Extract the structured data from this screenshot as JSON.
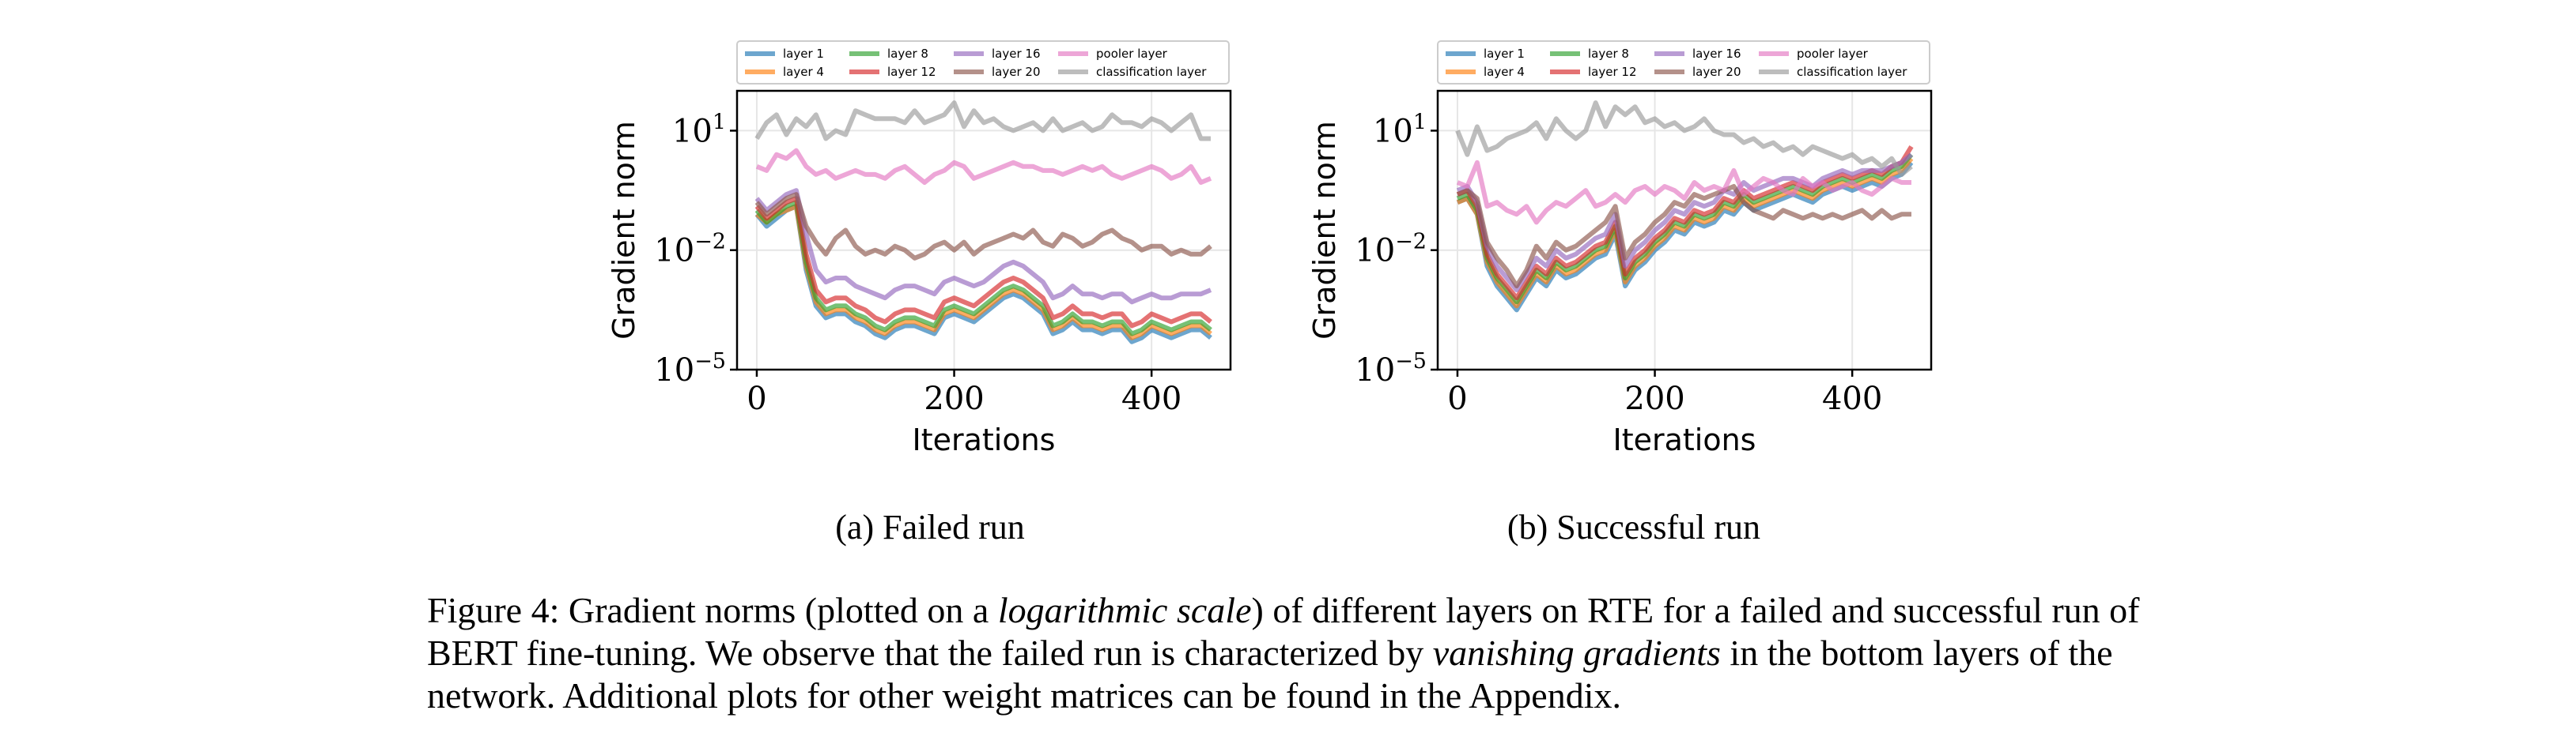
{
  "chart_data": [
    {
      "type": "line",
      "subcaption": "(a) Failed run",
      "xlabel": "Iterations",
      "ylabel": "Gradient norm",
      "yscale": "log",
      "xticks": [
        0,
        200,
        400
      ],
      "yticks": [
        {
          "value": -5,
          "label": "10",
          "exp": "−5"
        },
        {
          "value": -2,
          "label": "10",
          "exp": "−2"
        },
        {
          "value": 1,
          "label": "10",
          "exp": "1"
        }
      ],
      "xlim": [
        -20,
        480
      ],
      "ylim_log10": [
        -5,
        2
      ],
      "grid": true,
      "legend_position": "top",
      "x": [
        0,
        10,
        20,
        30,
        40,
        50,
        60,
        70,
        80,
        90,
        100,
        110,
        120,
        130,
        140,
        150,
        160,
        170,
        180,
        190,
        200,
        210,
        220,
        230,
        240,
        250,
        260,
        270,
        280,
        290,
        300,
        310,
        320,
        330,
        340,
        350,
        360,
        370,
        380,
        390,
        400,
        410,
        420,
        430,
        440,
        450,
        460
      ],
      "series": [
        {
          "name": "layer 1",
          "color": "#1f77b4",
          "log10_values": [
            -1.1,
            -1.4,
            -1.2,
            -1.0,
            -0.9,
            -2.5,
            -3.4,
            -3.7,
            -3.6,
            -3.6,
            -3.8,
            -3.9,
            -4.1,
            -4.2,
            -4.0,
            -3.9,
            -3.9,
            -4.0,
            -4.1,
            -3.7,
            -3.6,
            -3.7,
            -3.8,
            -3.6,
            -3.4,
            -3.2,
            -3.1,
            -3.2,
            -3.4,
            -3.6,
            -4.1,
            -4.0,
            -3.8,
            -4.0,
            -4.0,
            -4.1,
            -4.0,
            -4.0,
            -4.3,
            -4.2,
            -4.0,
            -4.1,
            -4.2,
            -4.1,
            -4.0,
            -4.0,
            -4.2
          ]
        },
        {
          "name": "layer 4",
          "color": "#ff7f0e",
          "log10_values": [
            -1.1,
            -1.3,
            -1.1,
            -1.0,
            -0.9,
            -2.4,
            -3.3,
            -3.6,
            -3.5,
            -3.5,
            -3.7,
            -3.8,
            -4.0,
            -4.1,
            -3.9,
            -3.8,
            -3.8,
            -3.9,
            -4.0,
            -3.6,
            -3.5,
            -3.6,
            -3.7,
            -3.5,
            -3.3,
            -3.1,
            -3.0,
            -3.1,
            -3.3,
            -3.5,
            -4.0,
            -3.9,
            -3.7,
            -3.9,
            -3.9,
            -4.0,
            -3.9,
            -3.9,
            -4.2,
            -4.1,
            -3.9,
            -4.0,
            -4.1,
            -4.0,
            -3.9,
            -3.9,
            -4.1
          ]
        },
        {
          "name": "layer 8",
          "color": "#2ca02c",
          "log10_values": [
            -1.0,
            -1.3,
            -1.1,
            -0.9,
            -0.8,
            -2.3,
            -3.2,
            -3.5,
            -3.4,
            -3.4,
            -3.6,
            -3.7,
            -3.9,
            -4.0,
            -3.8,
            -3.7,
            -3.7,
            -3.8,
            -3.9,
            -3.5,
            -3.4,
            -3.5,
            -3.6,
            -3.4,
            -3.2,
            -3.0,
            -2.9,
            -3.0,
            -3.2,
            -3.4,
            -3.9,
            -3.8,
            -3.6,
            -3.8,
            -3.8,
            -3.9,
            -3.8,
            -3.8,
            -4.1,
            -4.0,
            -3.8,
            -3.9,
            -4.0,
            -3.9,
            -3.8,
            -3.8,
            -4.0
          ]
        },
        {
          "name": "layer 12",
          "color": "#d62728",
          "log10_values": [
            -0.9,
            -1.2,
            -1.0,
            -0.8,
            -0.7,
            -2.1,
            -3.0,
            -3.3,
            -3.2,
            -3.2,
            -3.4,
            -3.5,
            -3.7,
            -3.8,
            -3.6,
            -3.5,
            -3.5,
            -3.6,
            -3.7,
            -3.3,
            -3.2,
            -3.3,
            -3.4,
            -3.2,
            -3.0,
            -2.8,
            -2.7,
            -2.8,
            -3.0,
            -3.2,
            -3.7,
            -3.6,
            -3.4,
            -3.6,
            -3.6,
            -3.7,
            -3.6,
            -3.6,
            -3.9,
            -3.8,
            -3.6,
            -3.7,
            -3.8,
            -3.7,
            -3.6,
            -3.6,
            -3.8
          ]
        },
        {
          "name": "layer 16",
          "color": "#9467bd",
          "log10_values": [
            -0.7,
            -1.0,
            -0.8,
            -0.6,
            -0.5,
            -1.6,
            -2.5,
            -2.8,
            -2.7,
            -2.7,
            -2.9,
            -3.0,
            -3.1,
            -3.2,
            -3.0,
            -2.9,
            -2.9,
            -3.0,
            -3.1,
            -2.8,
            -2.7,
            -2.8,
            -2.9,
            -2.8,
            -2.6,
            -2.4,
            -2.3,
            -2.4,
            -2.6,
            -2.8,
            -3.2,
            -3.1,
            -2.9,
            -3.1,
            -3.1,
            -3.2,
            -3.1,
            -3.1,
            -3.3,
            -3.2,
            -3.1,
            -3.2,
            -3.2,
            -3.1,
            -3.1,
            -3.1,
            -3.0
          ]
        },
        {
          "name": "layer 20",
          "color": "#8c564b",
          "log10_values": [
            -0.8,
            -1.1,
            -0.9,
            -0.7,
            -0.6,
            -1.4,
            -1.8,
            -2.1,
            -1.7,
            -1.5,
            -1.9,
            -2.1,
            -2.0,
            -2.1,
            -1.9,
            -2.0,
            -2.2,
            -2.1,
            -1.9,
            -1.8,
            -2.0,
            -1.8,
            -2.1,
            -1.9,
            -1.8,
            -1.7,
            -1.6,
            -1.7,
            -1.5,
            -1.8,
            -1.9,
            -1.6,
            -1.7,
            -1.9,
            -1.8,
            -1.6,
            -1.5,
            -1.7,
            -1.8,
            -2.0,
            -1.9,
            -1.9,
            -2.1,
            -2.0,
            -2.1,
            -2.1,
            -1.9
          ]
        },
        {
          "name": "pooler layer",
          "color": "#e377c2",
          "log10_values": [
            0.1,
            0.0,
            0.4,
            0.3,
            0.5,
            0.1,
            -0.1,
            0.0,
            -0.2,
            -0.1,
            0.0,
            -0.1,
            -0.1,
            -0.2,
            0.0,
            0.1,
            -0.1,
            -0.3,
            -0.1,
            0.0,
            0.2,
            0.1,
            -0.2,
            -0.1,
            0.0,
            0.1,
            0.2,
            0.1,
            0.1,
            0.0,
            0.0,
            -0.1,
            0.0,
            0.1,
            0.0,
            0.1,
            -0.1,
            -0.2,
            -0.1,
            0.0,
            0.1,
            0.0,
            -0.2,
            -0.1,
            0.1,
            -0.3,
            -0.2
          ]
        },
        {
          "name": "classification layer",
          "color": "#999999",
          "log10_values": [
            0.8,
            1.2,
            1.4,
            0.9,
            1.3,
            1.1,
            1.4,
            0.8,
            1.0,
            0.9,
            1.5,
            1.4,
            1.3,
            1.3,
            1.3,
            1.2,
            1.5,
            1.2,
            1.3,
            1.4,
            1.7,
            1.1,
            1.5,
            1.2,
            1.3,
            1.1,
            1.0,
            1.1,
            1.2,
            1.0,
            1.3,
            1.0,
            1.1,
            1.2,
            1.0,
            1.1,
            1.4,
            1.2,
            1.2,
            1.1,
            1.3,
            1.2,
            1.0,
            1.2,
            1.4,
            0.8,
            0.8
          ]
        }
      ]
    },
    {
      "type": "line",
      "subcaption": "(b) Successful run",
      "xlabel": "Iterations",
      "ylabel": "Gradient norm",
      "yscale": "log",
      "xticks": [
        0,
        200,
        400
      ],
      "yticks": [
        {
          "value": -5,
          "label": "10",
          "exp": "−5"
        },
        {
          "value": -2,
          "label": "10",
          "exp": "−2"
        },
        {
          "value": 1,
          "label": "10",
          "exp": "1"
        }
      ],
      "xlim": [
        -20,
        480
      ],
      "ylim_log10": [
        -5,
        2
      ],
      "grid": true,
      "legend_position": "top",
      "x": [
        0,
        10,
        20,
        30,
        40,
        50,
        60,
        70,
        80,
        90,
        100,
        110,
        120,
        130,
        140,
        150,
        160,
        170,
        180,
        190,
        200,
        210,
        220,
        230,
        240,
        250,
        260,
        270,
        280,
        290,
        300,
        310,
        320,
        330,
        340,
        350,
        360,
        370,
        380,
        390,
        400,
        410,
        420,
        430,
        440,
        450,
        460
      ],
      "series": [
        {
          "name": "layer 1",
          "color": "#1f77b4",
          "log10_values": [
            -0.8,
            -0.7,
            -1.1,
            -2.4,
            -2.9,
            -3.2,
            -3.5,
            -3.1,
            -2.7,
            -2.9,
            -2.5,
            -2.7,
            -2.6,
            -2.4,
            -2.2,
            -2.1,
            -1.6,
            -2.9,
            -2.5,
            -2.3,
            -2.0,
            -1.8,
            -1.5,
            -1.6,
            -1.3,
            -1.4,
            -1.3,
            -1.0,
            -1.1,
            -0.8,
            -1.0,
            -0.9,
            -0.8,
            -0.7,
            -0.6,
            -0.7,
            -0.8,
            -0.6,
            -0.5,
            -0.4,
            -0.5,
            -0.4,
            -0.3,
            -0.4,
            -0.2,
            -0.1,
            0.2
          ]
        },
        {
          "name": "layer 4",
          "color": "#ff7f0e",
          "log10_values": [
            -0.8,
            -0.7,
            -1.1,
            -2.3,
            -2.8,
            -3.1,
            -3.4,
            -3.0,
            -2.6,
            -2.8,
            -2.4,
            -2.6,
            -2.5,
            -2.3,
            -2.1,
            -2.0,
            -1.5,
            -2.8,
            -2.4,
            -2.2,
            -1.9,
            -1.7,
            -1.4,
            -1.5,
            -1.2,
            -1.3,
            -1.2,
            -0.9,
            -1.0,
            -0.7,
            -0.9,
            -0.8,
            -0.7,
            -0.6,
            -0.5,
            -0.6,
            -0.7,
            -0.5,
            -0.4,
            -0.3,
            -0.4,
            -0.3,
            -0.2,
            -0.3,
            -0.1,
            0.0,
            0.3
          ]
        },
        {
          "name": "layer 8",
          "color": "#2ca02c",
          "log10_values": [
            -0.7,
            -0.6,
            -1.0,
            -2.2,
            -2.7,
            -3.0,
            -3.3,
            -2.9,
            -2.5,
            -2.7,
            -2.3,
            -2.5,
            -2.4,
            -2.2,
            -2.0,
            -1.9,
            -1.4,
            -2.7,
            -2.3,
            -2.1,
            -1.8,
            -1.6,
            -1.3,
            -1.4,
            -1.1,
            -1.2,
            -1.1,
            -0.8,
            -0.9,
            -0.6,
            -0.8,
            -0.7,
            -0.6,
            -0.5,
            -0.4,
            -0.5,
            -0.6,
            -0.4,
            -0.3,
            -0.2,
            -0.3,
            -0.2,
            -0.1,
            -0.2,
            0.0,
            0.1,
            0.4
          ]
        },
        {
          "name": "layer 12",
          "color": "#d62728",
          "log10_values": [
            -0.6,
            -0.5,
            -0.9,
            -2.1,
            -2.6,
            -2.9,
            -3.2,
            -2.8,
            -2.4,
            -2.6,
            -2.2,
            -2.4,
            -2.3,
            -2.1,
            -1.9,
            -1.8,
            -1.3,
            -2.6,
            -2.2,
            -2.0,
            -1.7,
            -1.5,
            -1.2,
            -1.3,
            -1.0,
            -1.1,
            -1.0,
            -0.7,
            -0.8,
            -0.5,
            -0.7,
            -0.6,
            -0.5,
            -0.4,
            -0.3,
            -0.4,
            -0.5,
            -0.3,
            -0.2,
            -0.1,
            -0.2,
            -0.1,
            0.0,
            -0.1,
            0.1,
            0.2,
            0.6
          ]
        },
        {
          "name": "layer 16",
          "color": "#9467bd",
          "log10_values": [
            -0.5,
            -0.4,
            -0.8,
            -1.9,
            -2.4,
            -2.7,
            -3.0,
            -2.6,
            -2.2,
            -2.4,
            -2.0,
            -2.2,
            -2.1,
            -1.9,
            -1.7,
            -1.6,
            -1.1,
            -2.4,
            -2.0,
            -1.8,
            -1.5,
            -1.3,
            -1.0,
            -1.1,
            -0.8,
            -0.9,
            -0.8,
            -0.5,
            -0.6,
            -0.3,
            -0.5,
            -0.4,
            -0.3,
            -0.2,
            -0.2,
            -0.3,
            -0.4,
            -0.2,
            -0.1,
            0.0,
            -0.1,
            0.0,
            0.0,
            0.0,
            0.1,
            0.2,
            0.4
          ]
        },
        {
          "name": "layer 20",
          "color": "#8c564b",
          "log10_values": [
            -0.6,
            -0.5,
            -0.7,
            -1.8,
            -2.2,
            -2.5,
            -2.9,
            -2.5,
            -1.9,
            -2.2,
            -1.8,
            -2.0,
            -1.9,
            -1.7,
            -1.5,
            -1.3,
            -0.9,
            -2.2,
            -1.8,
            -1.6,
            -1.3,
            -1.1,
            -0.8,
            -0.9,
            -0.6,
            -0.7,
            -0.6,
            -0.5,
            -0.4,
            -0.8,
            -1.0,
            -1.1,
            -1.2,
            -1.0,
            -1.1,
            -1.2,
            -1.1,
            -1.2,
            -1.1,
            -1.2,
            -1.1,
            -1.0,
            -1.2,
            -1.0,
            -1.2,
            -1.1,
            -1.1
          ]
        },
        {
          "name": "pooler layer",
          "color": "#e377c2",
          "log10_values": [
            -0.3,
            -0.4,
            0.2,
            -0.9,
            -0.8,
            -1.0,
            -1.1,
            -0.9,
            -1.3,
            -1.0,
            -0.8,
            -0.9,
            -0.7,
            -0.5,
            -0.9,
            -0.8,
            -0.6,
            -0.8,
            -0.5,
            -0.4,
            -0.6,
            -0.4,
            -0.5,
            -0.7,
            -0.3,
            -0.5,
            -0.4,
            -0.5,
            0.0,
            -0.6,
            -0.4,
            -0.2,
            -0.3,
            -0.5,
            -0.6,
            -0.2,
            -0.4,
            -0.3,
            -0.5,
            -0.4,
            -0.3,
            -0.5,
            -0.6,
            -0.4,
            -0.2,
            -0.3,
            -0.3
          ]
        },
        {
          "name": "classification layer",
          "color": "#999999",
          "log10_values": [
            1.0,
            0.4,
            1.1,
            0.5,
            0.6,
            0.8,
            0.9,
            1.0,
            1.2,
            0.8,
            1.3,
            1.0,
            0.8,
            1.0,
            1.7,
            1.1,
            1.6,
            1.4,
            1.6,
            1.2,
            1.3,
            1.1,
            1.2,
            1.0,
            1.1,
            1.3,
            1.0,
            0.9,
            0.9,
            0.7,
            0.8,
            0.6,
            0.7,
            0.5,
            0.6,
            0.4,
            0.6,
            0.5,
            0.4,
            0.3,
            0.4,
            0.2,
            0.3,
            0.1,
            0.3,
            -0.1,
            0.1
          ]
        }
      ]
    }
  ],
  "caption": {
    "p1": "Figure 4: Gradient norms (plotted on a ",
    "em1": "logarithmic scale",
    "p2": ") of different layers on RTE for a failed and successful run of BERT fine-tuning. We observe that the failed run is characterized by ",
    "em2": "vanishing gradients",
    "p3": " in the bottom layers of the network. Additional plots for other weight matrices can be found in the Appendix."
  }
}
